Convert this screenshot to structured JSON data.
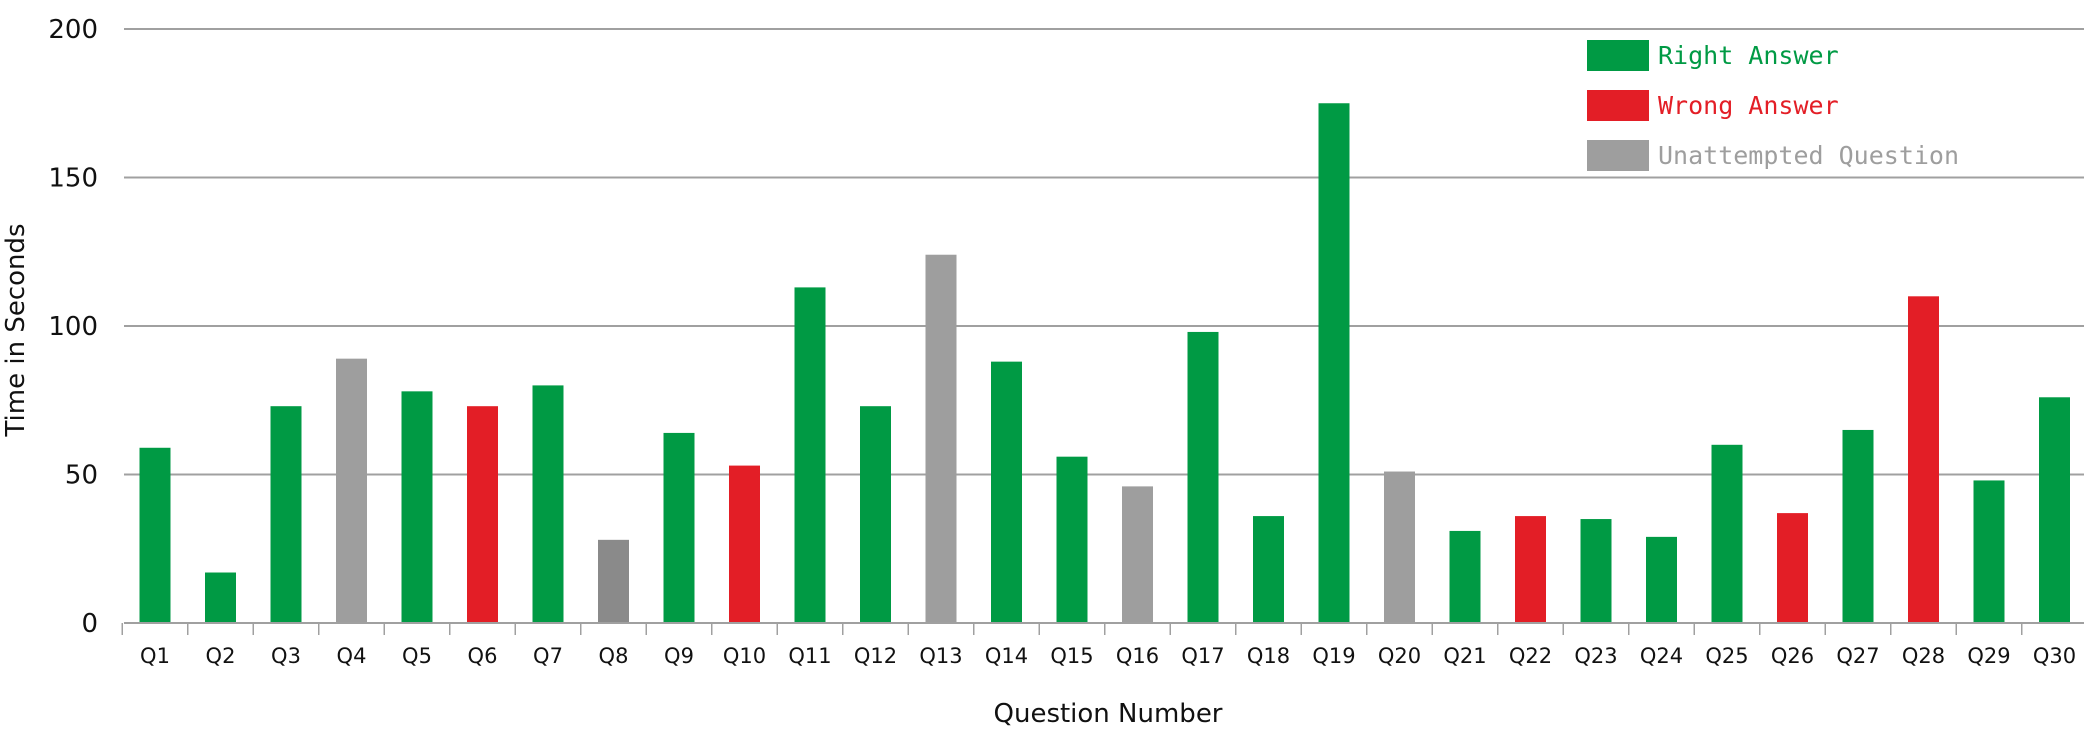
{
  "chart_data": {
    "type": "bar",
    "title": "",
    "xlabel": "Question Number",
    "ylabel": "Time in Seconds",
    "ylim": [
      0,
      200
    ],
    "yticks": [
      0,
      50,
      100,
      150,
      200
    ],
    "grid": true,
    "legend_position": "top-right",
    "categories": [
      "Q1",
      "Q2",
      "Q3",
      "Q4",
      "Q5",
      "Q6",
      "Q7",
      "Q8",
      "Q9",
      "Q10",
      "Q11",
      "Q12",
      "Q13",
      "Q14",
      "Q15",
      "Q16",
      "Q17",
      "Q18",
      "Q19",
      "Q20",
      "Q21",
      "Q22",
      "Q23",
      "Q24",
      "Q25",
      "Q26",
      "Q27",
      "Q28",
      "Q29",
      "Q30"
    ],
    "values": [
      59,
      17,
      73,
      89,
      78,
      73,
      80,
      28,
      64,
      53,
      113,
      73,
      124,
      88,
      56,
      46,
      98,
      36,
      175,
      51,
      31,
      36,
      35,
      29,
      60,
      37,
      65,
      110,
      48,
      76
    ],
    "status": [
      "right",
      "right",
      "right",
      "unattempted",
      "right",
      "wrong",
      "right",
      "unattempted",
      "right",
      "wrong",
      "right",
      "right",
      "unattempted",
      "right",
      "right",
      "unattempted",
      "right",
      "right",
      "right",
      "unattempted",
      "right",
      "wrong",
      "right",
      "right",
      "right",
      "wrong",
      "right",
      "wrong",
      "right",
      "right"
    ],
    "legend": [
      {
        "key": "right",
        "label": "Right Answer",
        "color": "#009a44"
      },
      {
        "key": "wrong",
        "label": "Wrong Answer",
        "color": "#e31e26"
      },
      {
        "key": "unattempted",
        "label": "Unattempted Question",
        "color": "#9e9e9e"
      }
    ],
    "q8_color": "#8a8a8a",
    "gridline_color": "#a0a0a0"
  }
}
